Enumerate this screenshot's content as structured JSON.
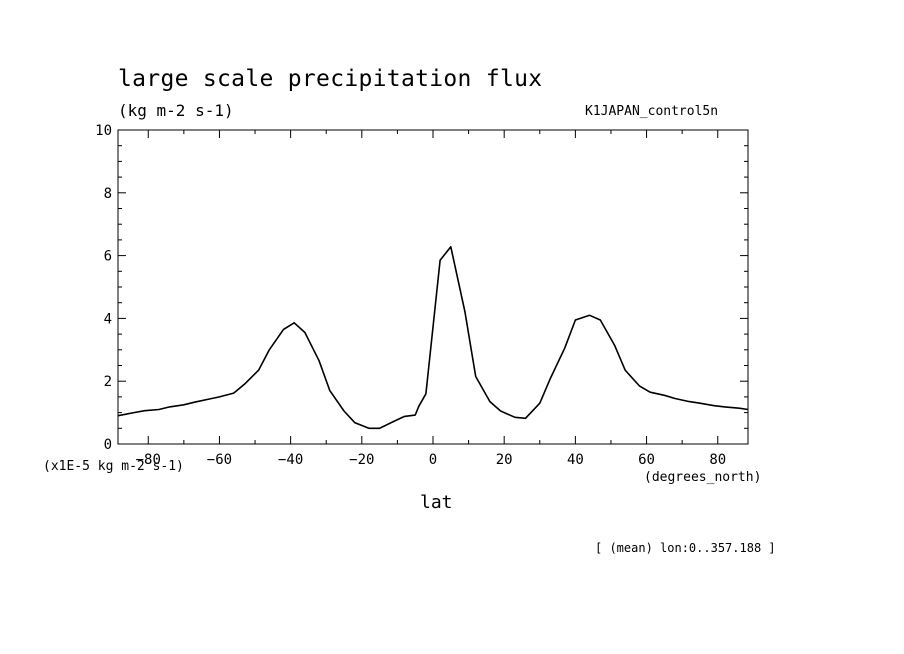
{
  "header": {
    "title": "large scale precipitation flux",
    "units": "(kg m-2 s-1)",
    "run_name": "K1JAPAN_control5n"
  },
  "footer": {
    "scale_note": "(x1E-5 kg m-2 s-1)",
    "x_units": "(degrees_north)",
    "x_label": "lat",
    "mean_note": "[ (mean) lon:0..357.188 ]"
  },
  "chart_data": {
    "type": "line",
    "title": "large scale precipitation flux",
    "xlabel": "lat",
    "ylabel": "(kg m-2 s-1)",
    "xlim": [
      -88.5,
      88.5
    ],
    "ylim": [
      0,
      10
    ],
    "x_ticks": [
      -80,
      -60,
      -40,
      -20,
      0,
      20,
      40,
      60,
      80
    ],
    "y_ticks": [
      0,
      2,
      4,
      6,
      8,
      10
    ],
    "x_tick_labels": [
      "-80",
      "-60",
      "-40",
      "-20",
      "0",
      "20",
      "40",
      "60",
      "80"
    ],
    "y_tick_labels": [
      "0",
      "2",
      "4",
      "6",
      "8",
      "10"
    ],
    "grid": false,
    "series": [
      {
        "x": [
          -88.5,
          -84,
          -81,
          -77,
          -74,
          -70,
          -67,
          -63,
          -60,
          -56,
          -53,
          -49,
          -46,
          -42,
          -39,
          -36,
          -32,
          -29,
          -25,
          -22,
          -18,
          -15,
          -11,
          -8,
          -5,
          -4,
          -2,
          2,
          5,
          9,
          12,
          16,
          19,
          23,
          26,
          30,
          33,
          37,
          40,
          44,
          47,
          51,
          54,
          58,
          61,
          65,
          68,
          72,
          75,
          79,
          82,
          86,
          88.5
        ],
        "y": [
          0.9,
          1.0,
          1.06,
          1.1,
          1.18,
          1.25,
          1.33,
          1.43,
          1.5,
          1.62,
          1.9,
          2.35,
          3.0,
          3.65,
          3.86,
          3.55,
          2.65,
          1.7,
          1.05,
          0.68,
          0.5,
          0.5,
          0.72,
          0.88,
          0.92,
          1.2,
          1.6,
          5.85,
          6.28,
          4.2,
          2.15,
          1.35,
          1.05,
          0.85,
          0.82,
          1.3,
          2.1,
          3.05,
          3.95,
          4.1,
          3.95,
          3.15,
          2.35,
          1.85,
          1.65,
          1.55,
          1.45,
          1.35,
          1.3,
          1.22,
          1.18,
          1.14,
          1.1
        ]
      }
    ]
  }
}
